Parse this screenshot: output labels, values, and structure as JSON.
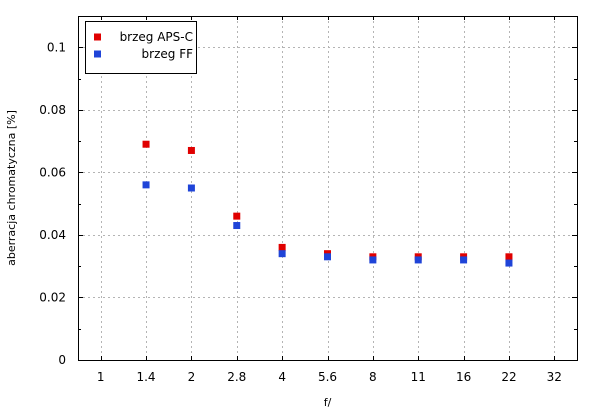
{
  "chart_data": {
    "type": "scatter",
    "title": "",
    "xlabel": "f/",
    "ylabel": "aberracja chromatyczna [%]",
    "categories": [
      "1",
      "1.4",
      "2",
      "2.8",
      "4",
      "5.6",
      "8",
      "11",
      "16",
      "22",
      "32"
    ],
    "ylim": [
      0,
      0.11
    ],
    "y_ticks": [
      "0",
      "0.02",
      "0.04",
      "0.06",
      "0.08",
      "0.1"
    ],
    "grid": true,
    "legend_position": "top-left",
    "series": [
      {
        "name": "brzeg APS-C",
        "color": "#e00000",
        "x": [
          "1.4",
          "2",
          "2.8",
          "4",
          "5.6",
          "8",
          "11",
          "16",
          "22"
        ],
        "values": [
          0.069,
          0.067,
          0.046,
          0.036,
          0.034,
          0.033,
          0.033,
          0.033,
          0.033
        ]
      },
      {
        "name": "brzeg FF",
        "color": "#1f44d8",
        "x": [
          "1.4",
          "2",
          "2.8",
          "4",
          "5.6",
          "8",
          "11",
          "16",
          "22"
        ],
        "values": [
          0.056,
          0.055,
          0.043,
          0.034,
          0.033,
          0.032,
          0.032,
          0.032,
          0.031
        ]
      }
    ]
  }
}
